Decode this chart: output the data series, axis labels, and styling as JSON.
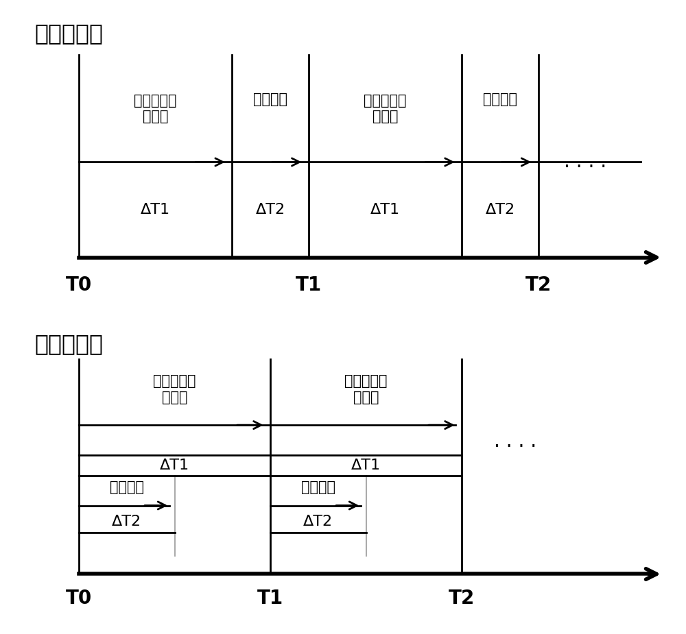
{
  "title_seq": "顺序运行：",
  "title_par": "并行运行：",
  "label_sg": "蒸汽发生器\n二次侧",
  "label_ms": "主蒸汽管",
  "label_dt1": "ΔT1",
  "label_dt2": "ΔT2",
  "label_T0": "T0",
  "label_T1": "T1",
  "label_T2": "T2",
  "label_dots": ". . . .",
  "bg_color": "#ffffff",
  "line_color": "#000000",
  "text_color": "#000000",
  "title_fontsize": 24,
  "label_fontsize": 15,
  "tick_fontsize": 20,
  "delta_fontsize": 16
}
